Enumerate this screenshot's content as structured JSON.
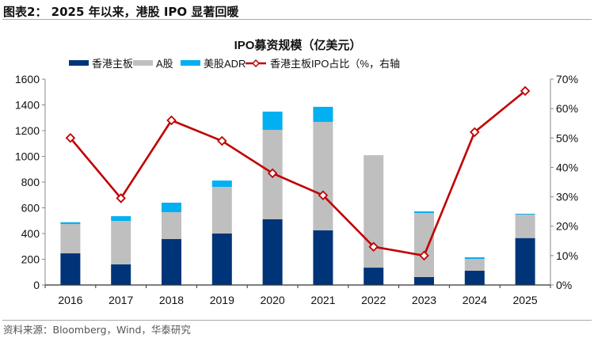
{
  "header": {
    "title": "图表2： 2025 年以来，港股 IPO 显著回暖"
  },
  "source": "资料来源：Bloomberg，Wind，华泰研究",
  "chart_data": {
    "type": "bar",
    "stacked": true,
    "title": "IPO募资规模（亿美元）",
    "categories": [
      "2016",
      "2017",
      "2018",
      "2019",
      "2020",
      "2021",
      "2022",
      "2023",
      "2024",
      "2025"
    ],
    "series": [
      {
        "name": "香港主板",
        "type": "bar",
        "axis": "left",
        "color": "#003478",
        "values": [
          246,
          160,
          357,
          400,
          511,
          425,
          135,
          62,
          111,
          365
        ]
      },
      {
        "name": "A股",
        "type": "bar",
        "axis": "left",
        "color": "#bfbfbf",
        "values": [
          228,
          338,
          209,
          363,
          695,
          843,
          874,
          498,
          92,
          183
        ]
      },
      {
        "name": "美股ADR",
        "type": "bar",
        "axis": "left",
        "color": "#00b0f0",
        "values": [
          14,
          37,
          74,
          49,
          142,
          117,
          0,
          12,
          12,
          6
        ]
      },
      {
        "name": "香港主板IPO占比（%，右轴",
        "type": "line",
        "axis": "right",
        "color": "#c00000",
        "marker": "diamond",
        "values": [
          50,
          29.5,
          56,
          49,
          38,
          30.5,
          13,
          10,
          52,
          66
        ]
      }
    ],
    "ylim": [
      0,
      1600
    ],
    "yticks": [
      "0",
      "200",
      "400",
      "600",
      "800",
      "1000",
      "1200",
      "1400",
      "1600"
    ],
    "y2lim": [
      0,
      70
    ],
    "y2ticks": [
      "0%",
      "10%",
      "20%",
      "30%",
      "40%",
      "50%",
      "60%",
      "70%"
    ],
    "grid": false,
    "legend": "top"
  }
}
